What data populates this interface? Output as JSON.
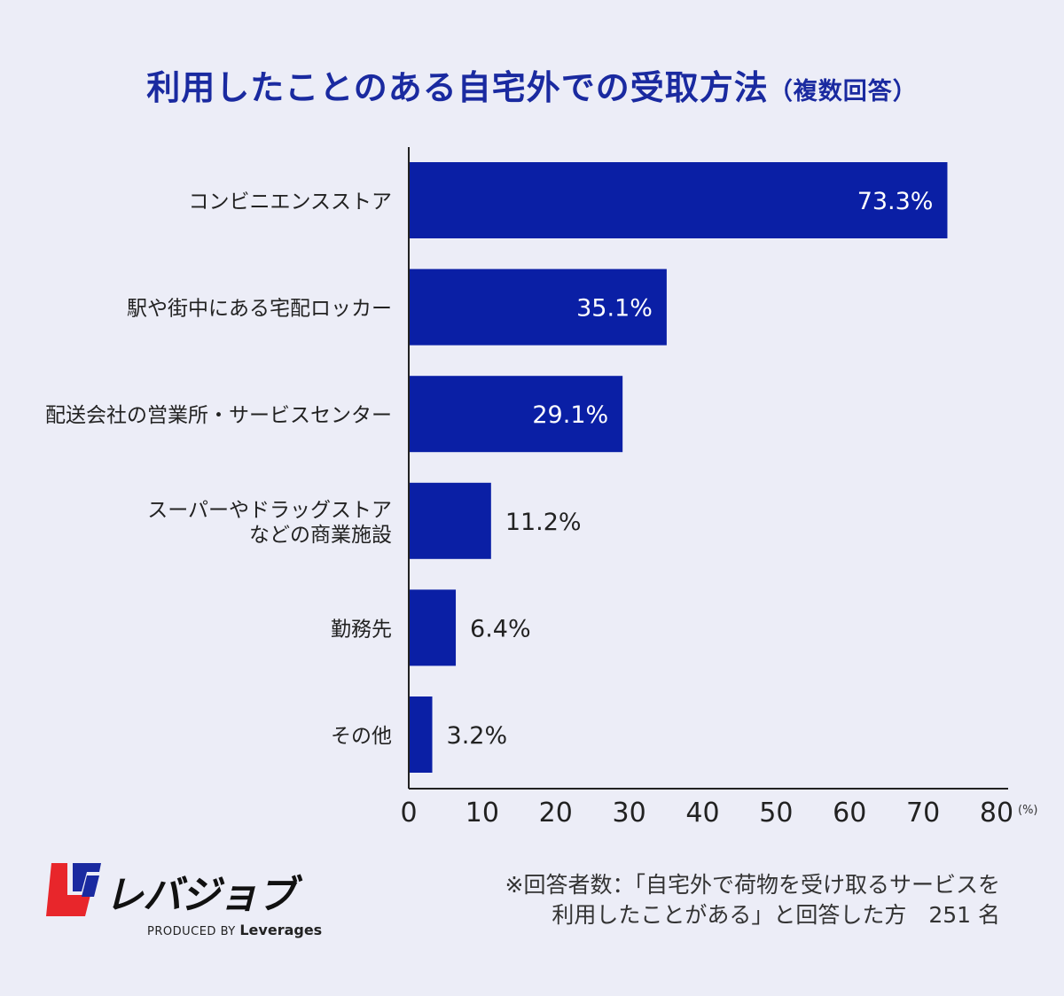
{
  "header": {
    "title": "利用したことのある自宅外での受取方法",
    "subtitle": "（複数回答）"
  },
  "chart_data": {
    "type": "bar",
    "orientation": "horizontal",
    "categories": [
      [
        "コンビニエンスストア"
      ],
      [
        "駅や街中にある宅配ロッカー"
      ],
      [
        "配送会社の営業所・サービスセンター"
      ],
      [
        "スーパーやドラッグストア",
        "などの商業施設"
      ],
      [
        "勤務先"
      ],
      [
        "その他"
      ]
    ],
    "values": [
      73.3,
      35.1,
      29.1,
      11.2,
      6.4,
      3.2
    ],
    "value_labels": [
      "73.3%",
      "35.1%",
      "29.1%",
      "11.2%",
      "6.4%",
      "3.2%"
    ],
    "xlim": [
      0,
      80
    ],
    "xticks": [
      "0",
      "10",
      "20",
      "30",
      "40",
      "50",
      "60",
      "70",
      "80"
    ],
    "xunit": "(%)",
    "grid": false,
    "bar_color": "#0a1fa5"
  },
  "footnote": {
    "line1": "※回答者数：「自宅外で荷物を受け取るサービスを",
    "line2": "利用したことがある」と回答した方　251 名"
  },
  "logo": {
    "text": "レバジョブ",
    "produced_by": "PRODUCED BY",
    "brand": "Leverages",
    "colors": {
      "red": "#e8262b",
      "blue": "#1a2aa0"
    }
  }
}
